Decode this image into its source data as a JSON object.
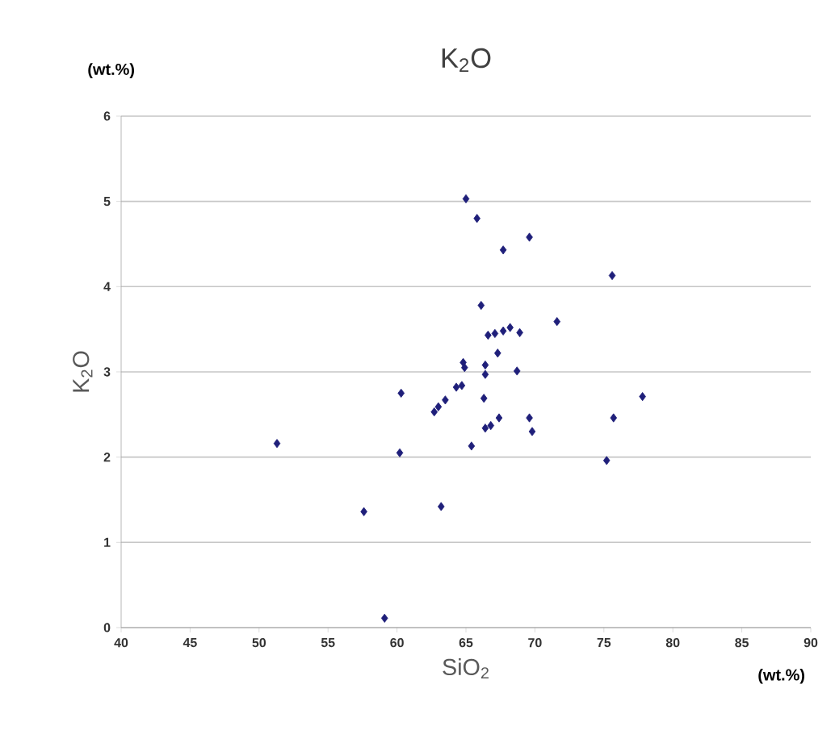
{
  "chart_data": {
    "type": "scatter",
    "title": "K$_{2}$O",
    "xlabel": "SiO$_{2}$",
    "ylabel": "K$_{2}$O",
    "annotations": [
      "(wt.%)",
      "(wt.%)"
    ],
    "xlim": [
      40,
      90
    ],
    "xticks": [
      40,
      45,
      50,
      55,
      60,
      65,
      70,
      75,
      80,
      85,
      90
    ],
    "ylim": [
      0,
      6
    ],
    "yticks": [
      0,
      1,
      2,
      3,
      4,
      5,
      6
    ],
    "grid": "y",
    "marker": "diamond",
    "series": [
      {
        "color": "#1f1f7a",
        "x": [
          65.0,
          65.8,
          69.6,
          67.7,
          75.6,
          66.1,
          71.6,
          68.2,
          67.7,
          67.1,
          66.6,
          68.9,
          67.3,
          64.8,
          64.9,
          66.4,
          66.4,
          68.7,
          64.7,
          64.3,
          63.5,
          63.0,
          62.7,
          60.3,
          66.3,
          77.8,
          67.4,
          69.6,
          75.7,
          66.8,
          66.4,
          69.8,
          51.3,
          65.4,
          60.2,
          75.2,
          57.6,
          63.2,
          59.1
        ],
        "values": [
          5.03,
          4.8,
          4.58,
          4.43,
          4.13,
          3.78,
          3.59,
          3.52,
          3.48,
          3.45,
          3.43,
          3.46,
          3.22,
          3.11,
          3.05,
          3.08,
          2.97,
          3.01,
          2.84,
          2.82,
          2.67,
          2.59,
          2.53,
          2.75,
          2.69,
          2.71,
          2.46,
          2.46,
          2.46,
          2.37,
          2.34,
          2.3,
          2.16,
          2.13,
          2.05,
          1.96,
          1.36,
          1.42,
          0.11
        ]
      }
    ]
  }
}
